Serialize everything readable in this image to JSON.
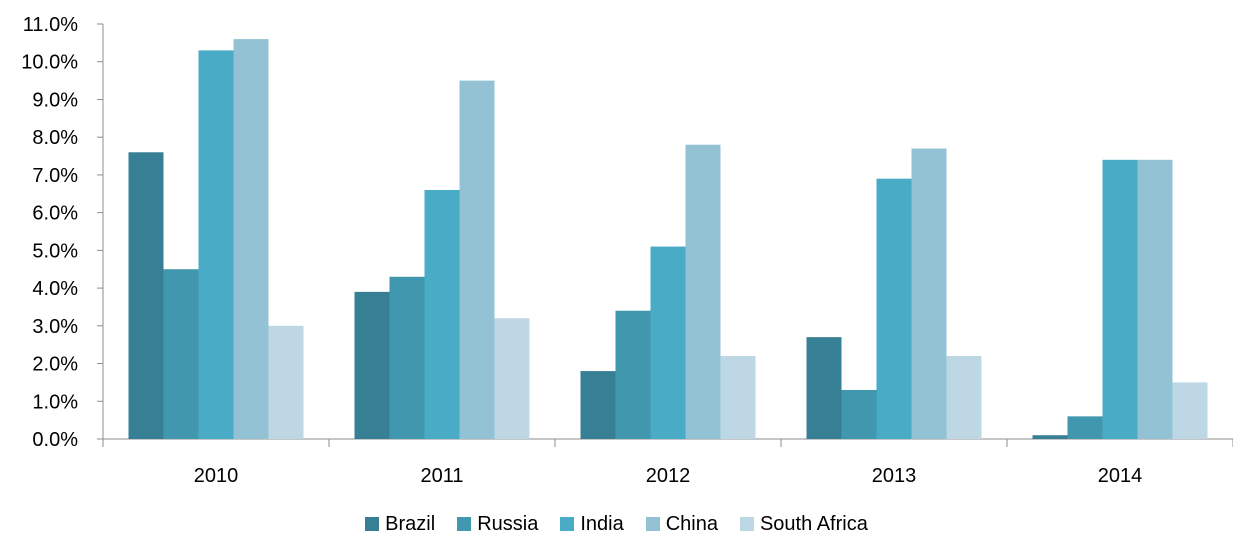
{
  "chart_data": {
    "type": "bar",
    "title": "",
    "xlabel": "",
    "ylabel": "",
    "categories": [
      "2010",
      "2011",
      "2012",
      "2013",
      "2014"
    ],
    "ylim": [
      0,
      11
    ],
    "yticks": [
      "0.0%",
      "1.0%",
      "2.0%",
      "3.0%",
      "4.0%",
      "5.0%",
      "6.0%",
      "7.0%",
      "8.0%",
      "9.0%",
      "10.0%",
      "11.0%"
    ],
    "grid": false,
    "legend_position": "bottom",
    "series": [
      {
        "name": "Brazil",
        "color": "#377f95",
        "values": [
          7.6,
          3.9,
          1.8,
          2.7,
          0.1
        ]
      },
      {
        "name": "Russia",
        "color": "#4097ae",
        "values": [
          4.5,
          4.3,
          3.4,
          1.3,
          0.6
        ]
      },
      {
        "name": "India",
        "color": "#4aabc6",
        "values": [
          10.3,
          6.6,
          5.1,
          6.9,
          7.4
        ]
      },
      {
        "name": "China",
        "color": "#93c2d4",
        "values": [
          10.6,
          9.5,
          7.8,
          7.7,
          7.4
        ]
      },
      {
        "name": "South Africa",
        "color": "#bdd8e4",
        "values": [
          3.0,
          3.2,
          2.2,
          2.2,
          1.5
        ]
      }
    ]
  }
}
